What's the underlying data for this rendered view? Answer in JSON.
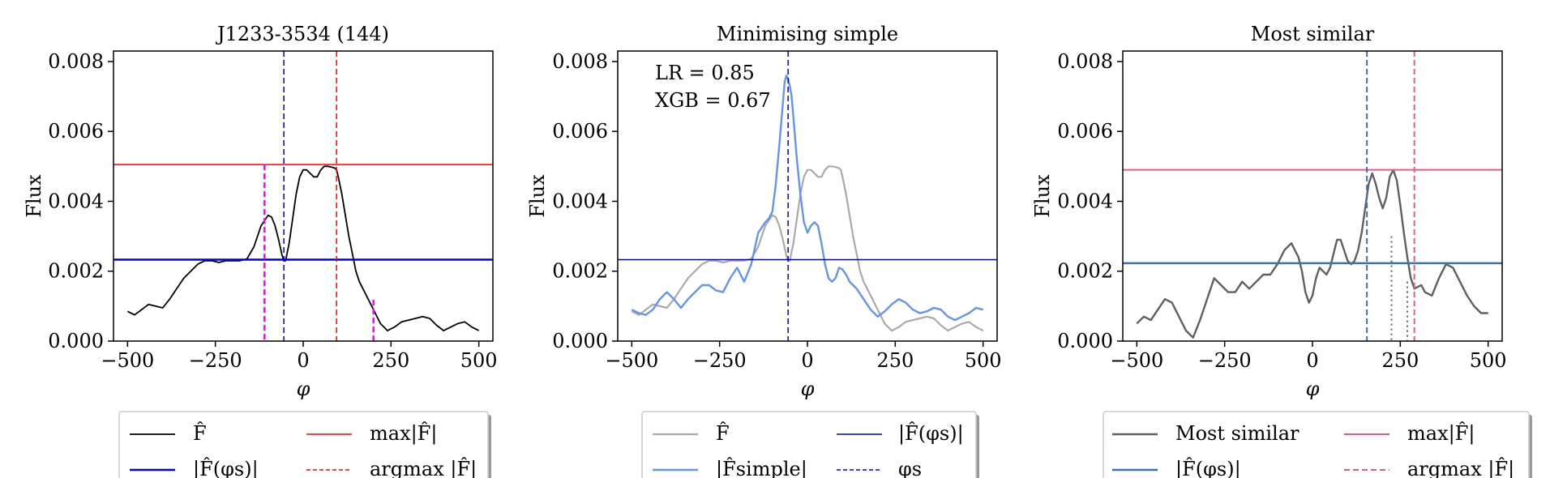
{
  "chart_data": [
    {
      "type": "line",
      "title": "J1233-3534 (144)",
      "xlabel": "φ",
      "ylabel": "Flux",
      "xlim": [
        -540,
        540
      ],
      "ylim": [
        0,
        0.0083
      ],
      "xticks": [
        -500,
        -250,
        0,
        250,
        500
      ],
      "xtick_labels": [
        "−500",
        "−250",
        "0",
        "250",
        "500"
      ],
      "yticks": [
        0,
        0.002,
        0.004,
        0.006,
        0.008
      ],
      "ytick_labels": [
        "0.000",
        "0.002",
        "0.004",
        "0.006",
        "0.008"
      ],
      "grid": false,
      "legend_position": "below",
      "annotations": [],
      "series": [
        {
          "name": "F̂",
          "kind": "curve",
          "color": "#000000",
          "dash": "solid",
          "width": 1.8,
          "x": [
            -500,
            -480,
            -460,
            -440,
            -420,
            -400,
            -380,
            -360,
            -340,
            -320,
            -300,
            -280,
            -260,
            -240,
            -220,
            -200,
            -180,
            -160,
            -140,
            -120,
            -100,
            -90,
            -80,
            -70,
            -60,
            -55,
            -50,
            -40,
            -30,
            -20,
            -10,
            0,
            10,
            20,
            30,
            40,
            50,
            60,
            70,
            80,
            90,
            95,
            100,
            110,
            120,
            130,
            140,
            150,
            160,
            170,
            180,
            200,
            220,
            240,
            260,
            280,
            300,
            320,
            340,
            360,
            380,
            400,
            420,
            440,
            460,
            480,
            500
          ],
          "y": [
            0.00085,
            0.00075,
            0.0009,
            0.00105,
            0.001,
            0.00095,
            0.0012,
            0.0015,
            0.0018,
            0.002,
            0.0022,
            0.0023,
            0.0023,
            0.00225,
            0.0023,
            0.0023,
            0.0023,
            0.00235,
            0.0027,
            0.0033,
            0.0036,
            0.00355,
            0.0033,
            0.0029,
            0.00245,
            0.0023,
            0.0023,
            0.0028,
            0.0035,
            0.0042,
            0.0047,
            0.0049,
            0.0049,
            0.0048,
            0.0047,
            0.0047,
            0.0049,
            0.005,
            0.005,
            0.00498,
            0.00495,
            0.0049,
            0.0047,
            0.0042,
            0.0036,
            0.003,
            0.0025,
            0.002,
            0.0017,
            0.0015,
            0.0013,
            0.0009,
            0.0005,
            0.0003,
            0.0004,
            0.00055,
            0.0006,
            0.00065,
            0.0007,
            0.00065,
            0.00045,
            0.0003,
            0.0004,
            0.0005,
            0.00055,
            0.0004,
            0.0003
          ]
        },
        {
          "name": "max|F̂|",
          "kind": "hline",
          "value": 0.00505,
          "color": "#ff0000",
          "dash": "solid",
          "width": 1.5
        },
        {
          "name": "|F̂(φs)|",
          "kind": "hline",
          "value": 0.00233,
          "color": "#0000ee",
          "dash": "solid",
          "width": 2.5
        },
        {
          "name": "argmax |F̂|",
          "kind": "vline",
          "value": 95,
          "color": "#ff0000",
          "dash": "dashed",
          "width": 1.5
        },
        {
          "name": "φs",
          "kind": "vline",
          "value": -55,
          "color": "#0000ee",
          "dash": "dashed",
          "width": 1.5
        },
        {
          "name": "",
          "kind": "vline",
          "value": -110,
          "ymax": 0.00505,
          "color": "#ff00ff",
          "dash": "dashed",
          "width": 2.5
        },
        {
          "name": "",
          "kind": "vline",
          "value": 200,
          "ymax": 0.00118,
          "color": "#ff00ff",
          "dash": "dashed",
          "width": 2.5
        }
      ],
      "legend": [
        {
          "label": "F̂",
          "color": "#000000",
          "dash": "solid"
        },
        {
          "label": "max|F̂|",
          "color": "#ff0000",
          "dash": "solid"
        },
        {
          "label": "|F̂(φs)|",
          "color": "#0000ee",
          "dash": "solid"
        },
        {
          "label": "argmax |F̂|",
          "color": "#ff0000",
          "dash": "dashed"
        }
      ]
    },
    {
      "type": "line",
      "title": "Minimising simple",
      "xlabel": "φ",
      "ylabel": "Flux",
      "xlim": [
        -540,
        540
      ],
      "ylim": [
        0,
        0.0083
      ],
      "xticks": [
        -500,
        -250,
        0,
        250,
        500
      ],
      "xtick_labels": [
        "−500",
        "−250",
        "0",
        "250",
        "500"
      ],
      "yticks": [
        0,
        0.002,
        0.004,
        0.006,
        0.008
      ],
      "ytick_labels": [
        "0.000",
        "0.002",
        "0.004",
        "0.006",
        "0.008"
      ],
      "grid": false,
      "legend_position": "below",
      "annotations": [
        "LR = 0.85",
        "XGB = 0.67"
      ],
      "series": [
        {
          "name": "F̂",
          "kind": "curve",
          "color": "#aaaaaa",
          "dash": "solid",
          "width": 2.2,
          "x": [
            -500,
            -480,
            -460,
            -440,
            -420,
            -400,
            -380,
            -360,
            -340,
            -320,
            -300,
            -280,
            -260,
            -240,
            -220,
            -200,
            -180,
            -160,
            -140,
            -120,
            -100,
            -90,
            -80,
            -70,
            -60,
            -55,
            -50,
            -40,
            -30,
            -20,
            -10,
            0,
            10,
            20,
            30,
            40,
            50,
            60,
            70,
            80,
            90,
            95,
            100,
            110,
            120,
            130,
            140,
            150,
            160,
            170,
            180,
            200,
            220,
            240,
            260,
            280,
            300,
            320,
            340,
            360,
            380,
            400,
            420,
            440,
            460,
            480,
            500
          ],
          "y": [
            0.00085,
            0.00075,
            0.0009,
            0.00105,
            0.001,
            0.00095,
            0.0012,
            0.0015,
            0.0018,
            0.002,
            0.0022,
            0.0023,
            0.0023,
            0.00225,
            0.0023,
            0.0023,
            0.0023,
            0.00235,
            0.0027,
            0.0033,
            0.0036,
            0.00355,
            0.0033,
            0.0029,
            0.00245,
            0.0023,
            0.0023,
            0.0028,
            0.0035,
            0.0042,
            0.0047,
            0.0049,
            0.0049,
            0.0048,
            0.0047,
            0.0047,
            0.0049,
            0.005,
            0.005,
            0.00498,
            0.00495,
            0.0049,
            0.0047,
            0.0042,
            0.0036,
            0.003,
            0.0025,
            0.002,
            0.0017,
            0.0015,
            0.0013,
            0.0009,
            0.0005,
            0.0003,
            0.0004,
            0.00055,
            0.0006,
            0.00065,
            0.0007,
            0.00065,
            0.00045,
            0.0003,
            0.0004,
            0.0005,
            0.00055,
            0.0004,
            0.0003
          ]
        },
        {
          "name": "|F̂simple|",
          "kind": "curve",
          "color": "#6495ed",
          "dash": "solid",
          "width": 2.4,
          "x": [
            -500,
            -480,
            -460,
            -440,
            -420,
            -400,
            -380,
            -360,
            -340,
            -320,
            -300,
            -280,
            -260,
            -240,
            -220,
            -200,
            -180,
            -160,
            -140,
            -120,
            -110,
            -100,
            -90,
            -80,
            -70,
            -65,
            -60,
            -55,
            -50,
            -45,
            -40,
            -30,
            -20,
            -10,
            0,
            10,
            20,
            30,
            40,
            50,
            60,
            70,
            80,
            90,
            100,
            110,
            120,
            130,
            140,
            160,
            180,
            200,
            220,
            240,
            260,
            280,
            300,
            320,
            340,
            360,
            380,
            400,
            420,
            440,
            460,
            480,
            500
          ],
          "y": [
            0.0009,
            0.0008,
            0.00075,
            0.0009,
            0.0012,
            0.0014,
            0.0012,
            0.00095,
            0.0012,
            0.0014,
            0.0016,
            0.0016,
            0.00145,
            0.0014,
            0.0018,
            0.0021,
            0.0017,
            0.0022,
            0.0031,
            0.0034,
            0.0035,
            0.0037,
            0.0045,
            0.0056,
            0.0068,
            0.0074,
            0.0076,
            0.0075,
            0.0073,
            0.007,
            0.0064,
            0.0052,
            0.0042,
            0.0034,
            0.0031,
            0.0033,
            0.0034,
            0.0033,
            0.0028,
            0.0022,
            0.0018,
            0.0017,
            0.0018,
            0.0021,
            0.00205,
            0.0019,
            0.0017,
            0.0016,
            0.0015,
            0.0012,
            0.0009,
            0.0007,
            0.00085,
            0.00105,
            0.0012,
            0.0011,
            0.0009,
            0.0008,
            0.00085,
            0.00095,
            0.0009,
            0.0007,
            0.0006,
            0.0007,
            0.0008,
            0.00095,
            0.0009
          ]
        },
        {
          "name": "|F̂(φs)|",
          "kind": "hline",
          "value": 0.00233,
          "color": "#0000cd",
          "dash": "solid",
          "width": 1.5
        },
        {
          "name": "φs",
          "kind": "vline",
          "value": -55,
          "color": "#0000cd",
          "dash": "dashed",
          "width": 1.5
        }
      ],
      "legend": [
        {
          "label": "F̂",
          "color": "#aaaaaa",
          "dash": "solid"
        },
        {
          "label": "|F̂(φs)|",
          "color": "#0000cd",
          "dash": "solid"
        },
        {
          "label": "|F̂simple|",
          "color": "#6495ed",
          "dash": "solid"
        },
        {
          "label": "φs",
          "color": "#0000cd",
          "dash": "dashed"
        }
      ]
    },
    {
      "type": "line",
      "title": "Most similar",
      "xlabel": "φ",
      "ylabel": "Flux",
      "xlim": [
        -540,
        540
      ],
      "ylim": [
        0,
        0.0083
      ],
      "xticks": [
        -500,
        -250,
        0,
        250,
        500
      ],
      "xtick_labels": [
        "−500",
        "−250",
        "0",
        "250",
        "500"
      ],
      "yticks": [
        0,
        0.002,
        0.004,
        0.006,
        0.008
      ],
      "ytick_labels": [
        "0.000",
        "0.002",
        "0.004",
        "0.006",
        "0.008"
      ],
      "grid": false,
      "legend_position": "below",
      "annotations": [],
      "series": [
        {
          "name": "Most similar",
          "kind": "curve",
          "color": "#606060",
          "dash": "solid",
          "width": 2.4,
          "x": [
            -500,
            -480,
            -460,
            -440,
            -420,
            -400,
            -380,
            -360,
            -340,
            -320,
            -300,
            -280,
            -260,
            -240,
            -220,
            -200,
            -180,
            -160,
            -140,
            -120,
            -100,
            -80,
            -60,
            -40,
            -30,
            -20,
            -10,
            0,
            10,
            20,
            30,
            40,
            50,
            60,
            70,
            80,
            90,
            100,
            110,
            120,
            130,
            140,
            150,
            160,
            170,
            180,
            190,
            200,
            210,
            220,
            230,
            240,
            250,
            260,
            270,
            280,
            290,
            300,
            310,
            320,
            340,
            360,
            380,
            400,
            420,
            440,
            460,
            480,
            500
          ],
          "y": [
            0.0005,
            0.0007,
            0.0006,
            0.0009,
            0.0012,
            0.0011,
            0.0007,
            0.0003,
            0.0001,
            0.0006,
            0.0012,
            0.0018,
            0.0016,
            0.0014,
            0.0014,
            0.0017,
            0.0015,
            0.0017,
            0.0019,
            0.0019,
            0.0022,
            0.0026,
            0.0028,
            0.0024,
            0.002,
            0.0014,
            0.0011,
            0.0013,
            0.0018,
            0.0021,
            0.002,
            0.0019,
            0.0021,
            0.0025,
            0.0029,
            0.0029,
            0.0026,
            0.0023,
            0.0022,
            0.0023,
            0.0026,
            0.0031,
            0.0038,
            0.0045,
            0.0048,
            0.0045,
            0.0041,
            0.0038,
            0.0041,
            0.0047,
            0.0049,
            0.0046,
            0.0039,
            0.0031,
            0.0024,
            0.0018,
            0.0015,
            0.00155,
            0.0016,
            0.0014,
            0.0013,
            0.0018,
            0.0022,
            0.0021,
            0.0017,
            0.0013,
            0.001,
            0.0008,
            0.0008
          ]
        },
        {
          "name": "max|F̂|",
          "kind": "hline",
          "value": 0.0049,
          "color": "#e05c86",
          "dash": "solid",
          "width": 2
        },
        {
          "name": "|F̂(φs)|",
          "kind": "hline",
          "value": 0.00223,
          "color": "#3a72b0",
          "dash": "solid",
          "width": 2.5
        },
        {
          "name": "argmax |F̂|",
          "kind": "vline",
          "value": 290,
          "color": "#e05c86",
          "dash": "dashed",
          "width": 2
        },
        {
          "name": "",
          "kind": "vline",
          "value": 155,
          "color": "#3a72b0",
          "dash": "dashed",
          "width": 2
        },
        {
          "name": "",
          "kind": "vline",
          "value": 225,
          "ymax": 0.003,
          "color": "#606060",
          "dash": "dotted",
          "width": 2
        },
        {
          "name": "",
          "kind": "vline",
          "value": 270,
          "ymax": 0.0017,
          "color": "#606060",
          "dash": "dotted",
          "width": 2
        }
      ],
      "legend": [
        {
          "label": "Most similar",
          "color": "#606060",
          "dash": "solid"
        },
        {
          "label": "max|F̂|",
          "color": "#e05c86",
          "dash": "solid"
        },
        {
          "label": "|F̂(φs)|",
          "color": "#3a72b0",
          "dash": "solid"
        },
        {
          "label": "argmax |F̂|",
          "color": "#e05c86",
          "dash": "dashed"
        }
      ]
    }
  ]
}
